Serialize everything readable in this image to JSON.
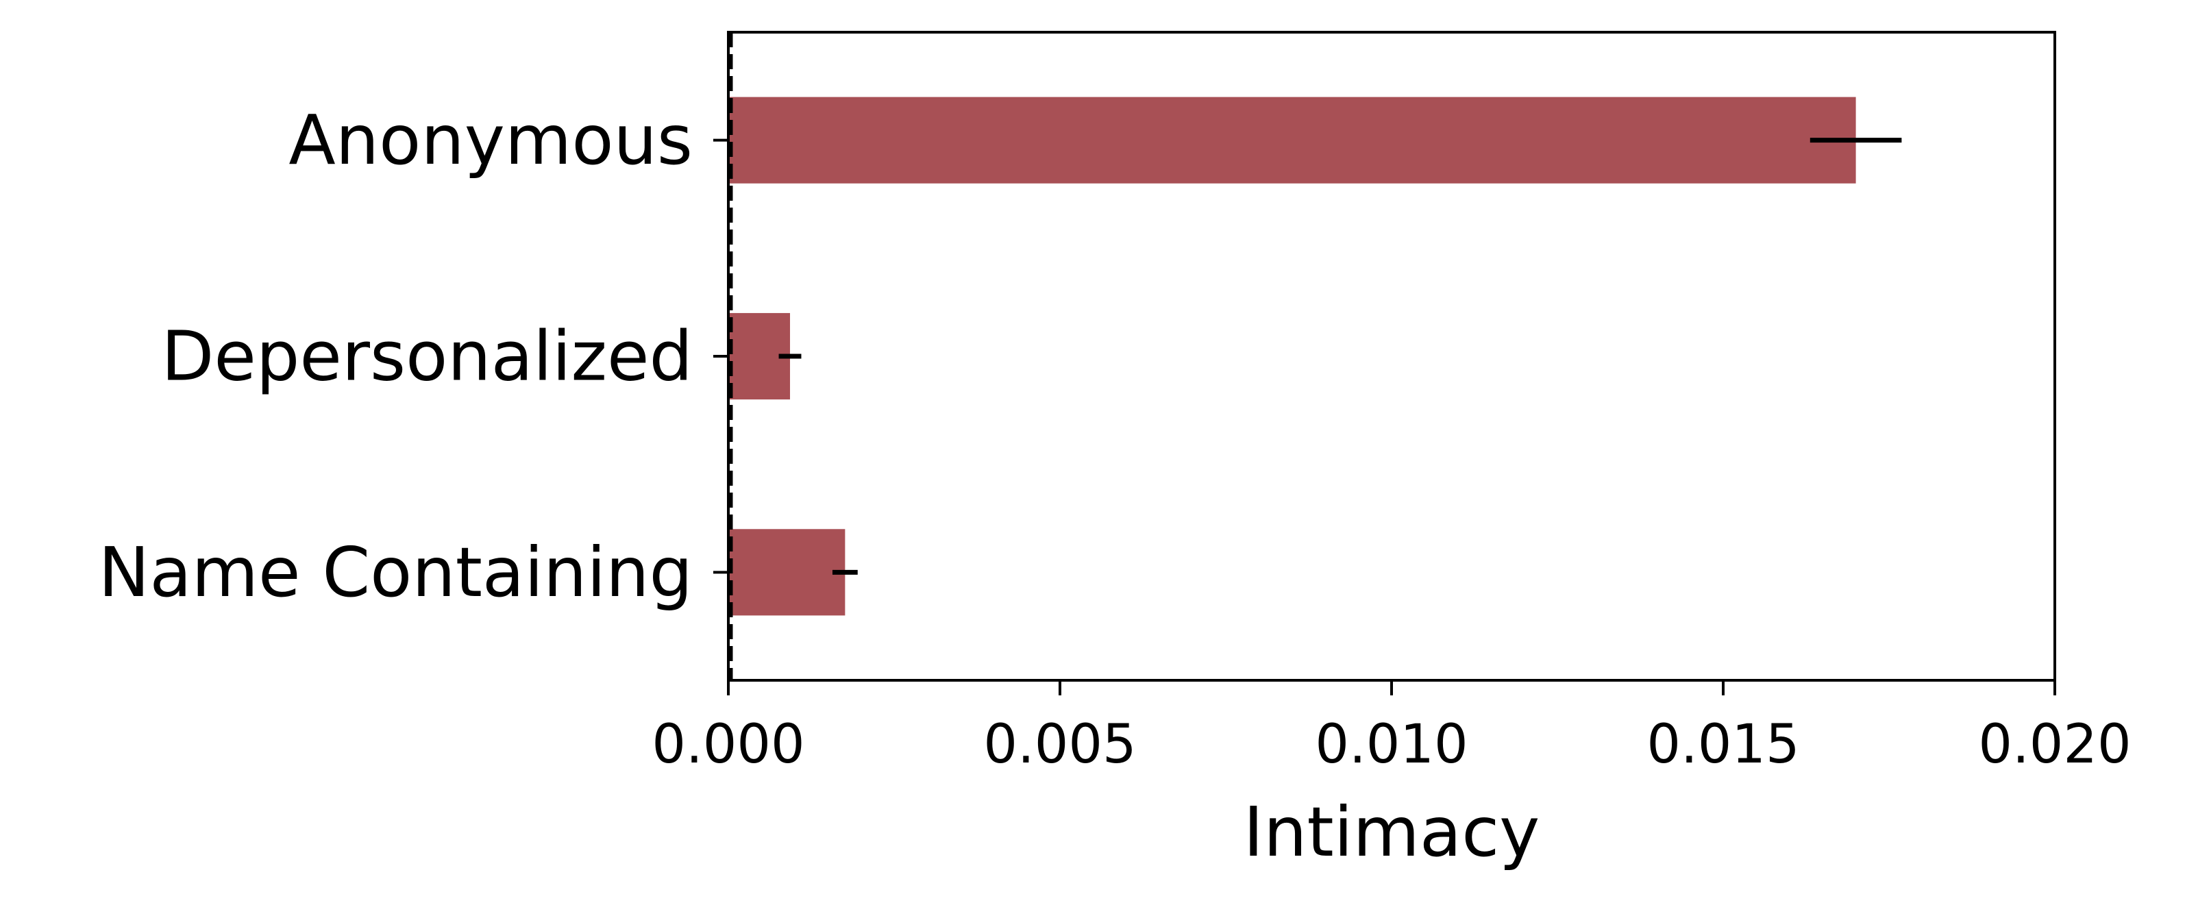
{
  "chart_data": {
    "type": "bar",
    "orientation": "horizontal",
    "categories": [
      "Anonymous",
      "Depersonalized",
      "Name Containing"
    ],
    "values": [
      0.017,
      0.00093,
      0.00176
    ],
    "error": [
      0.00069,
      0.00017,
      0.00019
    ],
    "xlabel": "Intimacy",
    "ylabel": "",
    "title": "",
    "xlim": [
      0.0,
      0.02
    ],
    "xticks": [
      0.0,
      0.005,
      0.01,
      0.015,
      0.02
    ],
    "xtick_labels": [
      "0.000",
      "0.005",
      "0.010",
      "0.015",
      "0.020"
    ],
    "grid": false,
    "legend": "none",
    "reference_line": {
      "x": 0.0,
      "style": "dashed"
    },
    "colors": {
      "bar": "#a85055",
      "error": "#000000",
      "axis": "#000000"
    }
  }
}
